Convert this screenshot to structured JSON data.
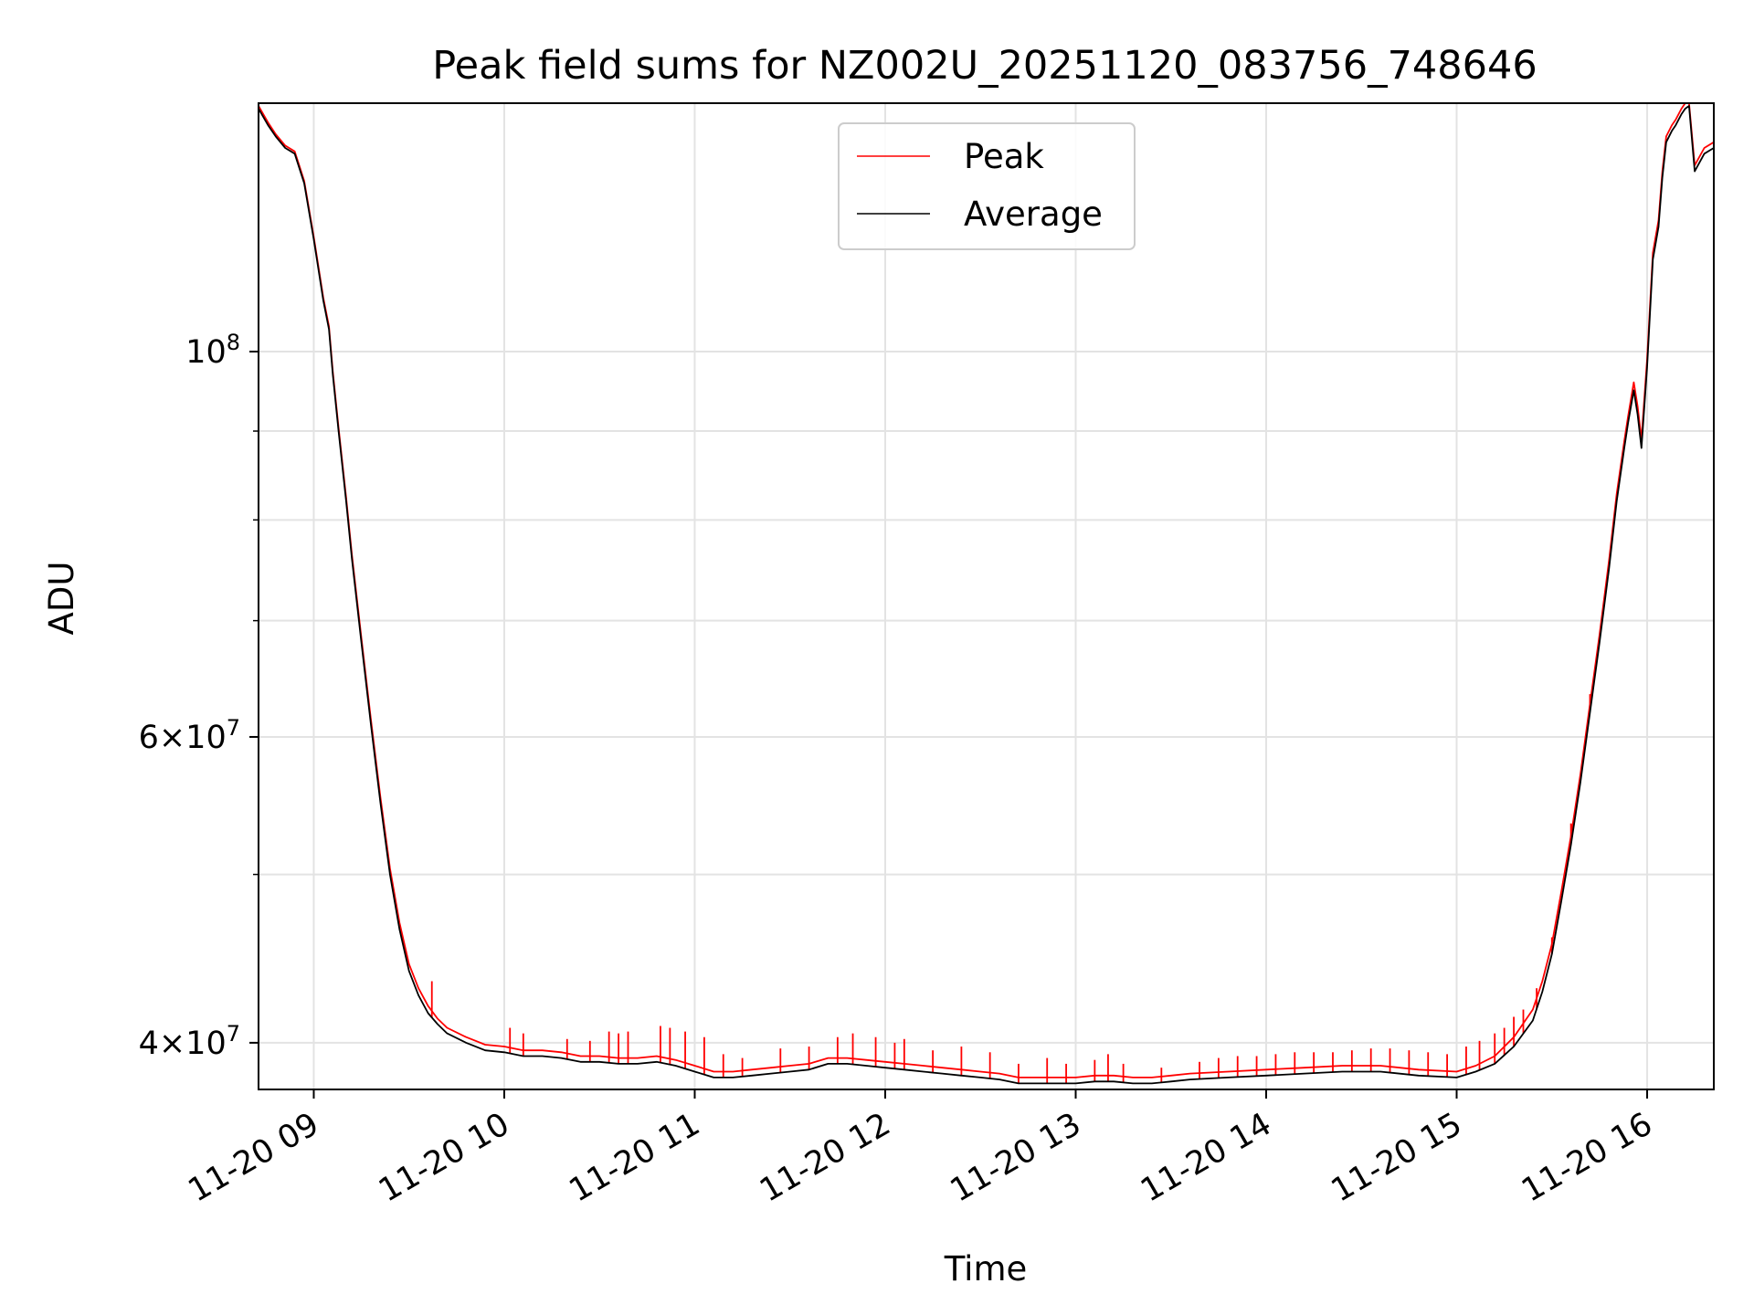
{
  "chart_data": {
    "type": "line",
    "title": "Peak field sums for NZ002U_20251120_083756_748646",
    "xlabel": "Time",
    "ylabel": "ADU",
    "yscale": "log",
    "grid": true,
    "legend_position": "top-center",
    "xlim": [
      8.71,
      16.35
    ],
    "ylim": [
      37600000,
      139000000
    ],
    "x_ticks": [
      9,
      10,
      11,
      12,
      13,
      14,
      15,
      16
    ],
    "x_tick_labels": [
      "11-20 09",
      "11-20 10",
      "11-20 11",
      "11-20 12",
      "11-20 13",
      "11-20 14",
      "11-20 15",
      "11-20 16"
    ],
    "y_major_ticks": [
      40000000,
      60000000,
      100000000
    ],
    "y_major_tick_labels": [
      {
        "base": "4",
        "times": "×",
        "pow": "10",
        "exp": "7"
      },
      {
        "base": "6",
        "times": "×",
        "pow": "10",
        "exp": "7"
      },
      {
        "base": "",
        "times": "",
        "pow": "10",
        "exp": "8"
      }
    ],
    "y_minor_ticks": [
      50000000,
      70000000,
      80000000,
      90000000
    ],
    "x_unit": "hour of day (2025-11-20)",
    "series": [
      {
        "name": "Average",
        "color": "#000000",
        "x": [
          8.71,
          8.76,
          8.8,
          8.85,
          8.9,
          8.95,
          9.0,
          9.05,
          9.08,
          9.1,
          9.13,
          9.17,
          9.2,
          9.25,
          9.3,
          9.35,
          9.4,
          9.45,
          9.5,
          9.55,
          9.6,
          9.65,
          9.7,
          9.8,
          9.9,
          10.0,
          10.1,
          10.2,
          10.3,
          10.4,
          10.5,
          10.6,
          10.7,
          10.8,
          10.9,
          11.0,
          11.1,
          11.2,
          11.3,
          11.4,
          11.5,
          11.6,
          11.7,
          11.8,
          11.9,
          12.0,
          12.1,
          12.2,
          12.3,
          12.4,
          12.5,
          12.6,
          12.7,
          12.8,
          12.9,
          13.0,
          13.1,
          13.2,
          13.3,
          13.4,
          13.5,
          13.6,
          13.8,
          14.0,
          14.2,
          14.4,
          14.6,
          14.8,
          15.0,
          15.1,
          15.2,
          15.3,
          15.4,
          15.45,
          15.5,
          15.55,
          15.6,
          15.65,
          15.7,
          15.75,
          15.8,
          15.84,
          15.88,
          15.9,
          15.93,
          15.95,
          15.97,
          16.0,
          16.03,
          16.06,
          16.08,
          16.1,
          16.13,
          16.15,
          16.18,
          16.2,
          16.22,
          16.25,
          16.3,
          16.35
        ],
        "y": [
          138000000,
          135000000,
          133000000,
          131000000,
          130000000,
          125000000,
          116000000,
          107000000,
          103000000,
          97000000,
          90000000,
          82000000,
          76000000,
          68000000,
          61000000,
          55000000,
          50000000,
          46500000,
          44000000,
          42600000,
          41600000,
          41000000,
          40500000,
          40000000,
          39600000,
          39500000,
          39300000,
          39300000,
          39200000,
          39000000,
          39000000,
          38900000,
          38900000,
          39000000,
          38800000,
          38500000,
          38200000,
          38200000,
          38300000,
          38400000,
          38500000,
          38600000,
          38900000,
          38900000,
          38800000,
          38700000,
          38600000,
          38500000,
          38400000,
          38300000,
          38200000,
          38100000,
          37900000,
          37900000,
          37900000,
          37900000,
          38000000,
          38000000,
          37900000,
          37900000,
          38000000,
          38100000,
          38200000,
          38300000,
          38400000,
          38500000,
          38500000,
          38300000,
          38200000,
          38500000,
          38900000,
          39800000,
          41200000,
          42800000,
          45000000,
          48300000,
          52000000,
          56500000,
          62000000,
          68000000,
          75000000,
          82000000,
          88000000,
          91000000,
          95000000,
          92000000,
          88000000,
          98000000,
          113000000,
          118000000,
          126000000,
          132000000,
          134000000,
          135000000,
          137000000,
          138000000,
          138500000,
          127000000,
          130000000,
          131000000
        ]
      },
      {
        "name": "Peak",
        "color": "#ff0000",
        "x": [
          8.71,
          8.76,
          8.8,
          8.85,
          8.9,
          8.95,
          9.0,
          9.05,
          9.08,
          9.1,
          9.13,
          9.17,
          9.2,
          9.25,
          9.3,
          9.35,
          9.4,
          9.45,
          9.5,
          9.55,
          9.6,
          9.65,
          9.7,
          9.8,
          9.9,
          10.0,
          10.1,
          10.2,
          10.3,
          10.4,
          10.5,
          10.6,
          10.7,
          10.8,
          10.9,
          11.0,
          11.1,
          11.2,
          11.3,
          11.4,
          11.5,
          11.6,
          11.7,
          11.8,
          11.9,
          12.0,
          12.1,
          12.2,
          12.3,
          12.4,
          12.5,
          12.6,
          12.7,
          12.8,
          12.9,
          13.0,
          13.1,
          13.2,
          13.3,
          13.4,
          13.5,
          13.6,
          13.8,
          14.0,
          14.2,
          14.4,
          14.6,
          14.8,
          15.0,
          15.1,
          15.2,
          15.3,
          15.4,
          15.45,
          15.5,
          15.55,
          15.6,
          15.65,
          15.7,
          15.75,
          15.8,
          15.84,
          15.88,
          15.9,
          15.93,
          15.95,
          15.97,
          16.0,
          16.03,
          16.06,
          16.08,
          16.1,
          16.13,
          16.15,
          16.18,
          16.2,
          16.22,
          16.25,
          16.3,
          16.35
        ],
        "y": [
          138500000,
          135500000,
          133400000,
          131400000,
          130400000,
          125400000,
          116400000,
          107400000,
          103400000,
          97400000,
          90400000,
          82400000,
          76400000,
          68400000,
          61400000,
          55400000,
          50400000,
          46900000,
          44400000,
          43000000,
          42000000,
          41300000,
          40800000,
          40300000,
          39900000,
          39800000,
          39600000,
          39600000,
          39500000,
          39300000,
          39300000,
          39200000,
          39200000,
          39300000,
          39100000,
          38800000,
          38500000,
          38500000,
          38600000,
          38700000,
          38800000,
          38900000,
          39200000,
          39200000,
          39100000,
          39000000,
          38900000,
          38800000,
          38700000,
          38600000,
          38500000,
          38400000,
          38200000,
          38200000,
          38200000,
          38200000,
          38300000,
          38300000,
          38200000,
          38200000,
          38300000,
          38400000,
          38500000,
          38600000,
          38700000,
          38800000,
          38800000,
          38600000,
          38500000,
          38800000,
          39300000,
          40300000,
          41800000,
          43400000,
          45600000,
          48900000,
          52600000,
          57100000,
          62700000,
          68700000,
          75800000,
          82800000,
          88800000,
          91800000,
          96000000,
          93000000,
          89000000,
          99000000,
          114000000,
          119000000,
          127000000,
          133000000,
          135000000,
          136000000,
          138000000,
          139000000,
          139000000,
          128000000,
          131000000,
          132000000
        ],
        "spikes": [
          {
            "x": 9.62,
            "y": 43400000
          },
          {
            "x": 10.03,
            "y": 40800000
          },
          {
            "x": 10.1,
            "y": 40500000
          },
          {
            "x": 10.33,
            "y": 40200000
          },
          {
            "x": 10.45,
            "y": 40100000
          },
          {
            "x": 10.55,
            "y": 40600000
          },
          {
            "x": 10.6,
            "y": 40500000
          },
          {
            "x": 10.65,
            "y": 40600000
          },
          {
            "x": 10.82,
            "y": 40900000
          },
          {
            "x": 10.87,
            "y": 40800000
          },
          {
            "x": 10.95,
            "y": 40600000
          },
          {
            "x": 11.05,
            "y": 40300000
          },
          {
            "x": 11.15,
            "y": 39400000
          },
          {
            "x": 11.25,
            "y": 39200000
          },
          {
            "x": 11.45,
            "y": 39700000
          },
          {
            "x": 11.6,
            "y": 39800000
          },
          {
            "x": 11.75,
            "y": 40300000
          },
          {
            "x": 11.83,
            "y": 40500000
          },
          {
            "x": 11.95,
            "y": 40300000
          },
          {
            "x": 12.05,
            "y": 40000000
          },
          {
            "x": 12.1,
            "y": 40200000
          },
          {
            "x": 12.25,
            "y": 39600000
          },
          {
            "x": 12.4,
            "y": 39800000
          },
          {
            "x": 12.55,
            "y": 39500000
          },
          {
            "x": 12.7,
            "y": 38900000
          },
          {
            "x": 12.85,
            "y": 39200000
          },
          {
            "x": 12.95,
            "y": 38900000
          },
          {
            "x": 13.1,
            "y": 39100000
          },
          {
            "x": 13.17,
            "y": 39400000
          },
          {
            "x": 13.25,
            "y": 38900000
          },
          {
            "x": 13.45,
            "y": 38700000
          },
          {
            "x": 13.65,
            "y": 39000000
          },
          {
            "x": 13.75,
            "y": 39200000
          },
          {
            "x": 13.85,
            "y": 39300000
          },
          {
            "x": 13.95,
            "y": 39300000
          },
          {
            "x": 14.05,
            "y": 39400000
          },
          {
            "x": 14.15,
            "y": 39500000
          },
          {
            "x": 14.25,
            "y": 39500000
          },
          {
            "x": 14.35,
            "y": 39500000
          },
          {
            "x": 14.45,
            "y": 39600000
          },
          {
            "x": 14.55,
            "y": 39700000
          },
          {
            "x": 14.65,
            "y": 39700000
          },
          {
            "x": 14.75,
            "y": 39600000
          },
          {
            "x": 14.85,
            "y": 39500000
          },
          {
            "x": 14.95,
            "y": 39400000
          },
          {
            "x": 15.05,
            "y": 39800000
          },
          {
            "x": 15.12,
            "y": 40100000
          },
          {
            "x": 15.2,
            "y": 40500000
          },
          {
            "x": 15.25,
            "y": 40800000
          },
          {
            "x": 15.3,
            "y": 41400000
          },
          {
            "x": 15.35,
            "y": 41800000
          },
          {
            "x": 15.42,
            "y": 43000000
          },
          {
            "x": 15.5,
            "y": 46000000
          },
          {
            "x": 15.6,
            "y": 53500000
          },
          {
            "x": 15.7,
            "y": 63500000
          }
        ]
      }
    ]
  }
}
